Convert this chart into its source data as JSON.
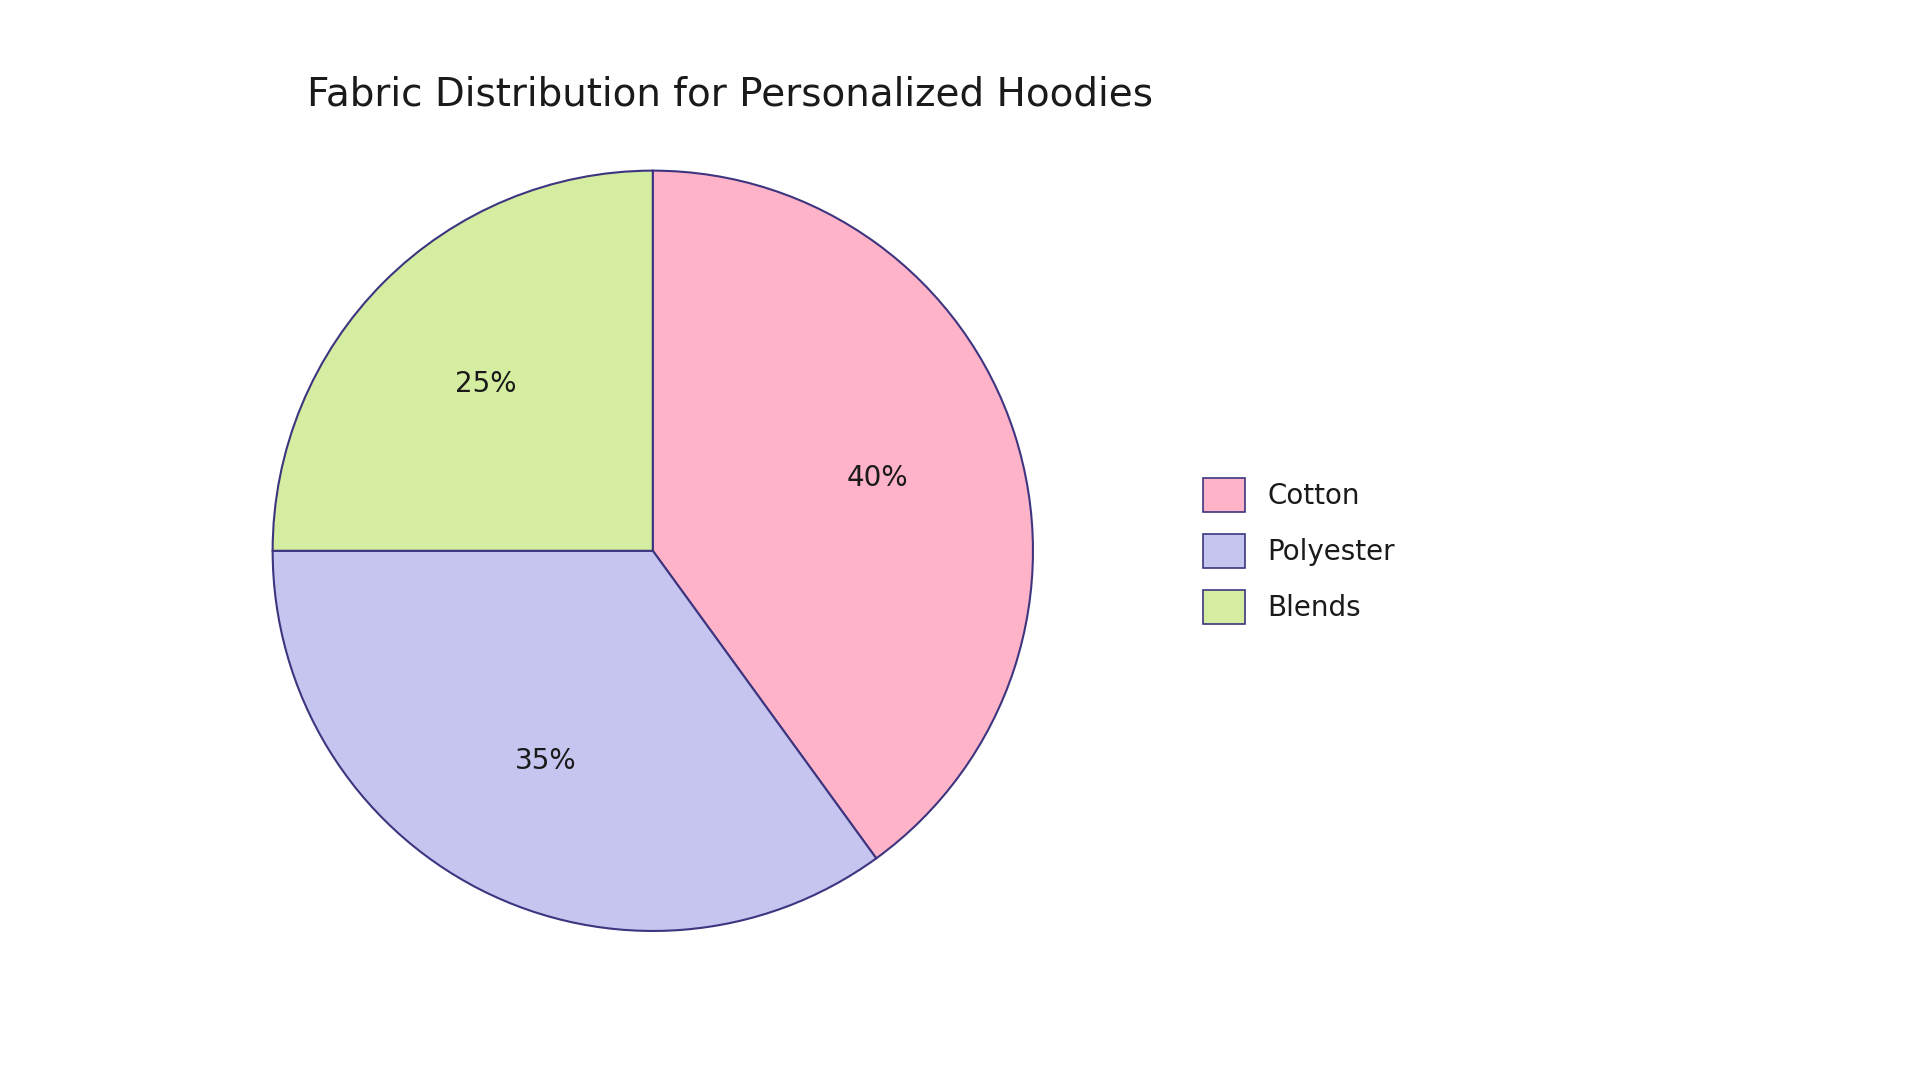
{
  "title": "Fabric Distribution for Personalized Hoodies",
  "labels": [
    "Cotton",
    "Polyester",
    "Blends"
  ],
  "values": [
    40,
    35,
    25
  ],
  "colors": [
    "#FFB3C8",
    "#C5C5F0",
    "#D4EDA0"
  ],
  "edge_color": "#3D3580",
  "edge_width": 1.5,
  "autopct_labels": [
    "40%",
    "35%",
    "25%"
  ],
  "startangle": 90,
  "title_fontsize": 28,
  "label_fontsize": 20,
  "legend_fontsize": 20,
  "background_color": "#FFFFFF",
  "text_color": "#1A1A1A"
}
